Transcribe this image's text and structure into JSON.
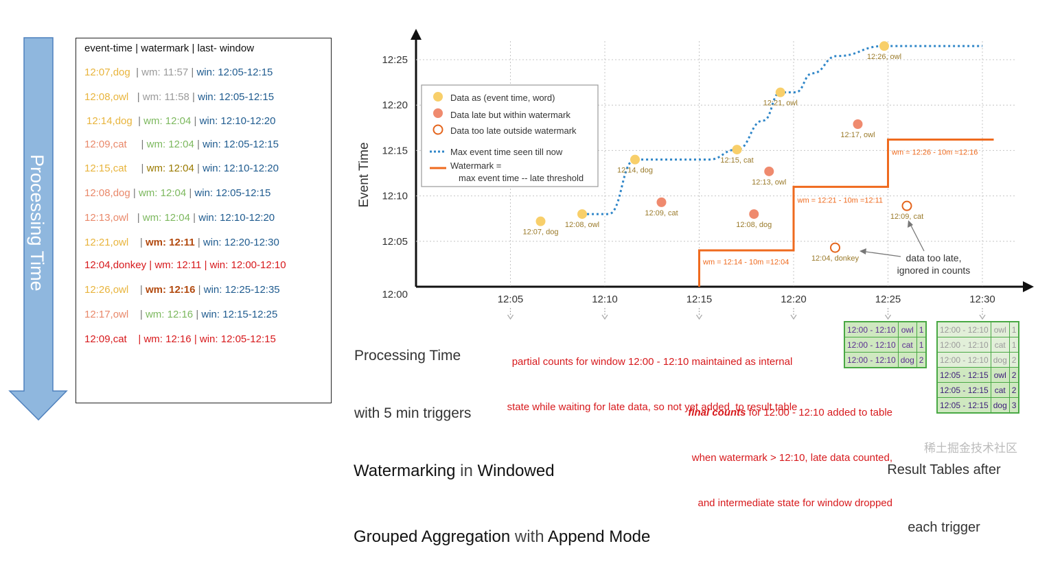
{
  "processing_arrow": {
    "label": "Processing Time"
  },
  "log": {
    "header": "event-time | watermark | last- window",
    "rows": [
      {
        "event": "12:07,dog",
        "wm": "wm: 11:57",
        "win": "win: 12:05-12:15"
      },
      {
        "event": "12:08,owl",
        "wm": "wm: 11:58",
        "win": "win: 12:05-12:15"
      },
      {
        "event": "12:14,dog",
        "wm": "wm: 12:04",
        "win": "win: 12:10-12:20"
      },
      {
        "event": "12:09,cat",
        "wm": "wm: 12:04",
        "win": "win: 12:05-12:15"
      },
      {
        "event": "12:15,cat",
        "wm": "wm: 12:04",
        "win": "win: 12:10-12:20"
      },
      {
        "event": "12:08,dog",
        "wm": "wm: 12:04",
        "win": "win: 12:05-12:15"
      },
      {
        "event": "12:13,owl",
        "wm": "wm: 12:04",
        "win": "win: 12:10-12:20"
      },
      {
        "event": "12:21,owl",
        "wm": "wm: 12:11",
        "win": "win: 12:20-12:30"
      },
      {
        "event": "12:04,donkey",
        "wm": "wm: 12:11",
        "win": "win: 12:00-12:10"
      },
      {
        "event": "12:26,owl",
        "wm": "wm: 12:16",
        "win": "win: 12:25-12:35"
      },
      {
        "event": "12:17,owl",
        "wm": "wm: 12:16",
        "win": "win: 12:15-12:25"
      },
      {
        "event": "12:09,cat",
        "wm": "wm: 12:16",
        "win": "win: 12:05-12:15"
      }
    ]
  },
  "chart_data": {
    "type": "scatter",
    "title": "Watermarking in Windowed Grouped Aggregation with Append Mode",
    "xlabel": "Processing Time with 5 min triggers",
    "ylabel": "Event Time",
    "x_ticks": [
      "12:05",
      "12:10",
      "12:15",
      "12:20",
      "12:25",
      "12:30"
    ],
    "y_ticks": [
      "12:00",
      "12:05",
      "12:10",
      "12:15",
      "12:20",
      "12:25"
    ],
    "xlim": [
      0,
      31
    ],
    "ylim": [
      0,
      28
    ],
    "points": [
      {
        "x": 6.6,
        "y": 7.2,
        "label": "12:07, dog",
        "kind": "on_time"
      },
      {
        "x": 8.8,
        "y": 8.0,
        "label": "12:08, owl",
        "kind": "on_time"
      },
      {
        "x": 11.6,
        "y": 14.0,
        "label": "12:14, dog",
        "kind": "on_time"
      },
      {
        "x": 13.0,
        "y": 9.3,
        "label": "12:09, cat",
        "kind": "late"
      },
      {
        "x": 17.0,
        "y": 15.1,
        "label": "12:15, cat",
        "kind": "on_time"
      },
      {
        "x": 17.9,
        "y": 8.0,
        "label": "12:08, dog",
        "kind": "late"
      },
      {
        "x": 18.7,
        "y": 12.7,
        "label": "12:13, owl",
        "kind": "late"
      },
      {
        "x": 19.3,
        "y": 21.4,
        "label": "12:21, owl",
        "kind": "on_time"
      },
      {
        "x": 22.2,
        "y": 4.3,
        "label": "12:04, donkey",
        "kind": "too_late"
      },
      {
        "x": 23.4,
        "y": 17.9,
        "label": "12:17, owl",
        "kind": "late"
      },
      {
        "x": 24.8,
        "y": 26.5,
        "label": "12:26, owl",
        "kind": "on_time"
      },
      {
        "x": 26.0,
        "y": 8.9,
        "label": "12:09, cat",
        "kind": "too_late"
      }
    ],
    "max_event_time_line": [
      [
        8.8,
        8.0
      ],
      [
        10.2,
        8.0
      ],
      [
        11.6,
        14.0
      ],
      [
        13.5,
        14.0
      ],
      [
        15.5,
        14.0
      ],
      [
        17.0,
        15.1
      ],
      [
        18.4,
        18.3
      ],
      [
        19.3,
        21.4
      ],
      [
        20.1,
        21.4
      ],
      [
        21.0,
        23.5
      ],
      [
        22.3,
        25.4
      ],
      [
        24.8,
        26.5
      ],
      [
        30.0,
        26.5
      ]
    ],
    "watermark_line": [
      [
        15.0,
        0
      ],
      [
        15.0,
        4.0
      ],
      [
        20.0,
        4.0
      ],
      [
        20.0,
        11.0
      ],
      [
        25.0,
        11.0
      ],
      [
        25.0,
        16.2
      ],
      [
        30.6,
        16.2
      ]
    ],
    "watermark_labels": [
      {
        "x": 15.2,
        "y": 3.5,
        "text": "wm = 12:14 - 10m =12:04"
      },
      {
        "x": 20.2,
        "y": 10.3,
        "text": "wm = 12:21 - 10m =12:11"
      },
      {
        "x": 25.2,
        "y": 15.6,
        "text": "wm = 12:26 - 10m =12:16"
      }
    ],
    "legend": [
      {
        "kind": "on_time",
        "label": "Data as (event time, word)"
      },
      {
        "kind": "late",
        "label": "Data late but within watermark"
      },
      {
        "kind": "too_late",
        "label": "Data too late outside watermark"
      },
      {
        "kind": "max_line",
        "label": "Max event time seen till now"
      },
      {
        "kind": "wm_line",
        "label": "Watermark ="
      },
      {
        "kind": "wm_line_cont",
        "label": "max event time -- late threshold"
      }
    ],
    "annotation_too_late": [
      "data too late,",
      "ignored in counts"
    ],
    "colors": {
      "on_time": "#f8cf6a",
      "late": "#ef8a6e",
      "too_late": "#e4641c",
      "max_line": "#2f86c8",
      "wm_line": "#ef6a1e"
    }
  },
  "notes": {
    "partial_line1": "partial counts for window 12:00 - 12:10 maintained as internal",
    "partial_line2": "state while waiting for late data, so not yet added  to result table",
    "final_bold": "final counts",
    "final_rest1": " for 12:00 - 12:10 added to table",
    "final_line2": "when watermark > 12:10, late data counted,",
    "final_line3": "and intermediate state for window dropped"
  },
  "axis_labels": {
    "processing_line1": "Processing Time",
    "processing_line2": "with 5 min triggers"
  },
  "title": {
    "w1": "Watermarking",
    "w2": " in ",
    "w3": "Windowed",
    "w4": "Grouped Aggregation",
    "w5": " with ",
    "w6": "Append Mode"
  },
  "result_tables": {
    "caption_line1": "Result Tables after",
    "caption_line2": "each trigger",
    "table1": [
      {
        "window": "12:00 - 12:10",
        "word": "owl",
        "count": "1"
      },
      {
        "window": "12:00 - 12:10",
        "word": "cat",
        "count": "1"
      },
      {
        "window": "12:00 - 12:10",
        "word": "dog",
        "count": "2"
      }
    ],
    "table2_old": [
      {
        "window": "12:00 - 12:10",
        "word": "owl",
        "count": "1"
      },
      {
        "window": "12:00 - 12:10",
        "word": "cat",
        "count": "1"
      },
      {
        "window": "12:00 - 12:10",
        "word": "dog",
        "count": "2"
      }
    ],
    "table2_new": [
      {
        "window": "12:05 - 12:15",
        "word": "owl",
        "count": "2"
      },
      {
        "window": "12:05 - 12:15",
        "word": "cat",
        "count": "2"
      },
      {
        "window": "12:05 - 12:15",
        "word": "dog",
        "count": "3"
      }
    ]
  },
  "watermark_text": "稀土掘金技术社区"
}
